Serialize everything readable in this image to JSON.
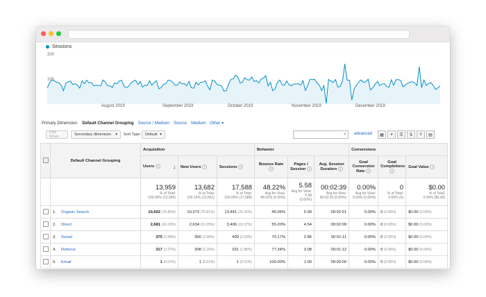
{
  "chart": {
    "legend": "Sessions",
    "y_ticks": [
      "200",
      "100"
    ],
    "x_labels": [
      "August 2019",
      "September 2019",
      "October 2019",
      "November 2019",
      "December 2019"
    ],
    "series_color": "#058dc7",
    "fill_color": "#e6f4fa"
  },
  "primary_dimension": {
    "label": "Primary Dimension:",
    "options": [
      "Default Channel Grouping",
      "Source / Medium",
      "Source",
      "Medium",
      "Other"
    ]
  },
  "toolbar": {
    "plot_rows": "Plot Rows",
    "secondary_dimension": "Secondary dimension",
    "sort_type_label": "Sort Type:",
    "sort_type_value": "Default",
    "advanced": "advanced"
  },
  "table": {
    "dimension_header": "Default Channel Grouping",
    "groups": [
      "Acquisition",
      "Behavior",
      "Conversions"
    ],
    "columns": [
      "Users",
      "New Users",
      "Sessions",
      "Bounce Rate",
      "Pages / Session",
      "Avg. Session Duration",
      "Goal Conversion Rate",
      "Goal Completions",
      "Goal Value"
    ],
    "totals": [
      {
        "value": "13,959",
        "sub1": "% of Total:",
        "sub2": "100.00% (13,959)"
      },
      {
        "value": "13,682",
        "sub1": "% of Total:",
        "sub2": "100.15% (13,661)"
      },
      {
        "value": "17,588",
        "sub1": "% of Total:",
        "sub2": "100.00% (17,588)"
      },
      {
        "value": "48.22%",
        "sub1": "Avg for View:",
        "sub2": "48.22% (0.00%)"
      },
      {
        "value": "5.58",
        "sub1": "Avg for View: 5.58",
        "sub2": "(0.00%)"
      },
      {
        "value": "00:02:39",
        "sub1": "Avg for View:",
        "sub2": "00:02:39 (0.00%)"
      },
      {
        "value": "0.00%",
        "sub1": "Avg for View:",
        "sub2": "0.00% (0.00%)"
      },
      {
        "value": "0",
        "sub1": "% of Total:",
        "sub2": "0.00% (0)"
      },
      {
        "value": "$0.00",
        "sub1": "% of Total:",
        "sub2": "0.00% ($0.00)"
      }
    ],
    "rows": [
      {
        "idx": "1.",
        "name": "Organic Search",
        "users": "10,602",
        "users_pct": "(75.86%)",
        "new_users": "10,373",
        "new_users_pct": "(75.81%)",
        "sessions": "13,441",
        "sessions_pct": "(76.42%)",
        "bounce": "45.06%",
        "pages": "5.99",
        "duration": "00:02:51",
        "conv": "0.00%",
        "compl": "0",
        "compl_pct": "(0.00%)",
        "value": "$0.00",
        "value_pct": "(0.00%)"
      },
      {
        "idx": "2.",
        "name": "Direct",
        "users": "2,681",
        "users_pct": "(19.18%)",
        "new_users": "2,634",
        "new_users_pct": "(19.25%)",
        "sessions": "3,406",
        "sessions_pct": "(19.37%)",
        "bounce": "55.20%",
        "pages": "4.54",
        "duration": "00:02:09",
        "conv": "0.00%",
        "compl": "0",
        "compl_pct": "(0.00%)",
        "value": "$0.00",
        "value_pct": "(0.00%)"
      },
      {
        "idx": "3.",
        "name": "Social",
        "users": "375",
        "users_pct": "(2.68%)",
        "new_users": "366",
        "new_users_pct": "(2.68%)",
        "sessions": "409",
        "sessions_pct": "(2.33%)",
        "bounce": "70.17%",
        "pages": "2.86",
        "duration": "00:01:11",
        "conv": "0.00%",
        "compl": "0",
        "compl_pct": "(0.00%)",
        "value": "$0.00",
        "value_pct": "(0.00%)"
      },
      {
        "idx": "4.",
        "name": "Referral",
        "users": "317",
        "users_pct": "(2.27%)",
        "new_users": "308",
        "new_users_pct": "(2.25%)",
        "sessions": "331",
        "sessions_pct": "(1.88%)",
        "bounce": "77.34%",
        "pages": "3.08",
        "duration": "00:01:12",
        "conv": "0.00%",
        "compl": "0",
        "compl_pct": "(0.00%)",
        "value": "$0.00",
        "value_pct": "(0.00%)"
      },
      {
        "idx": "5.",
        "name": "Email",
        "users": "1",
        "users_pct": "(0.01%)",
        "new_users": "1",
        "new_users_pct": "(0.01%)",
        "sessions": "1",
        "sessions_pct": "(0.01%)",
        "bounce": "100.00%",
        "pages": "1.00",
        "duration": "00:00:00",
        "conv": "0.00%",
        "compl": "0",
        "compl_pct": "(0.00%)",
        "value": "$0.00",
        "value_pct": "(0.00%)"
      }
    ]
  }
}
